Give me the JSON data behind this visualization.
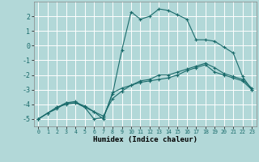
{
  "xlabel": "Humidex (Indice chaleur)",
  "background_color": "#b2d8d8",
  "grid_color": "#ffffff",
  "line_color": "#1a6b6b",
  "xlim": [
    -0.5,
    23.5
  ],
  "ylim": [
    -5.5,
    3.0
  ],
  "yticks": [
    -5,
    -4,
    -3,
    -2,
    -1,
    0,
    1,
    2
  ],
  "xticks": [
    0,
    1,
    2,
    3,
    4,
    5,
    6,
    7,
    8,
    9,
    10,
    11,
    12,
    13,
    14,
    15,
    16,
    17,
    18,
    19,
    20,
    21,
    22,
    23
  ],
  "line1_x": [
    0,
    1,
    2,
    3,
    4,
    5,
    6,
    7,
    8,
    9,
    10,
    11,
    12,
    13,
    14,
    15,
    16,
    17,
    18,
    19,
    20,
    21,
    22,
    23
  ],
  "line1_y": [
    -5.0,
    -4.6,
    -4.3,
    -3.9,
    -3.9,
    -4.2,
    -4.5,
    -5.0,
    -3.2,
    -2.9,
    -2.7,
    -2.5,
    -2.4,
    -2.3,
    -2.2,
    -2.0,
    -1.7,
    -1.5,
    -1.3,
    -1.8,
    -2.0,
    -2.2,
    -2.4,
    -3.0
  ],
  "line2_x": [
    0,
    1,
    2,
    3,
    4,
    5,
    6,
    7,
    8,
    9,
    10,
    11,
    12,
    13,
    14,
    15,
    16,
    17,
    18,
    19,
    20,
    21,
    22,
    23
  ],
  "line2_y": [
    -5.0,
    -4.6,
    -4.2,
    -3.9,
    -3.8,
    -4.2,
    -5.0,
    -4.9,
    -3.3,
    -0.3,
    2.3,
    1.8,
    2.0,
    2.5,
    2.4,
    2.1,
    1.8,
    0.4,
    0.4,
    0.3,
    -0.1,
    -0.5,
    -2.1,
    -3.0
  ],
  "line3_x": [
    0,
    1,
    2,
    3,
    4,
    5,
    6,
    7,
    8,
    9,
    10,
    11,
    12,
    13,
    14,
    15,
    16,
    17,
    18,
    19,
    20,
    21,
    22,
    23
  ],
  "line3_y": [
    -5.0,
    -4.6,
    -4.2,
    -4.0,
    -3.9,
    -4.1,
    -4.5,
    -4.8,
    -3.6,
    -3.1,
    -2.7,
    -2.4,
    -2.3,
    -2.0,
    -2.0,
    -1.8,
    -1.6,
    -1.4,
    -1.2,
    -1.5,
    -1.9,
    -2.1,
    -2.3,
    -2.9
  ]
}
